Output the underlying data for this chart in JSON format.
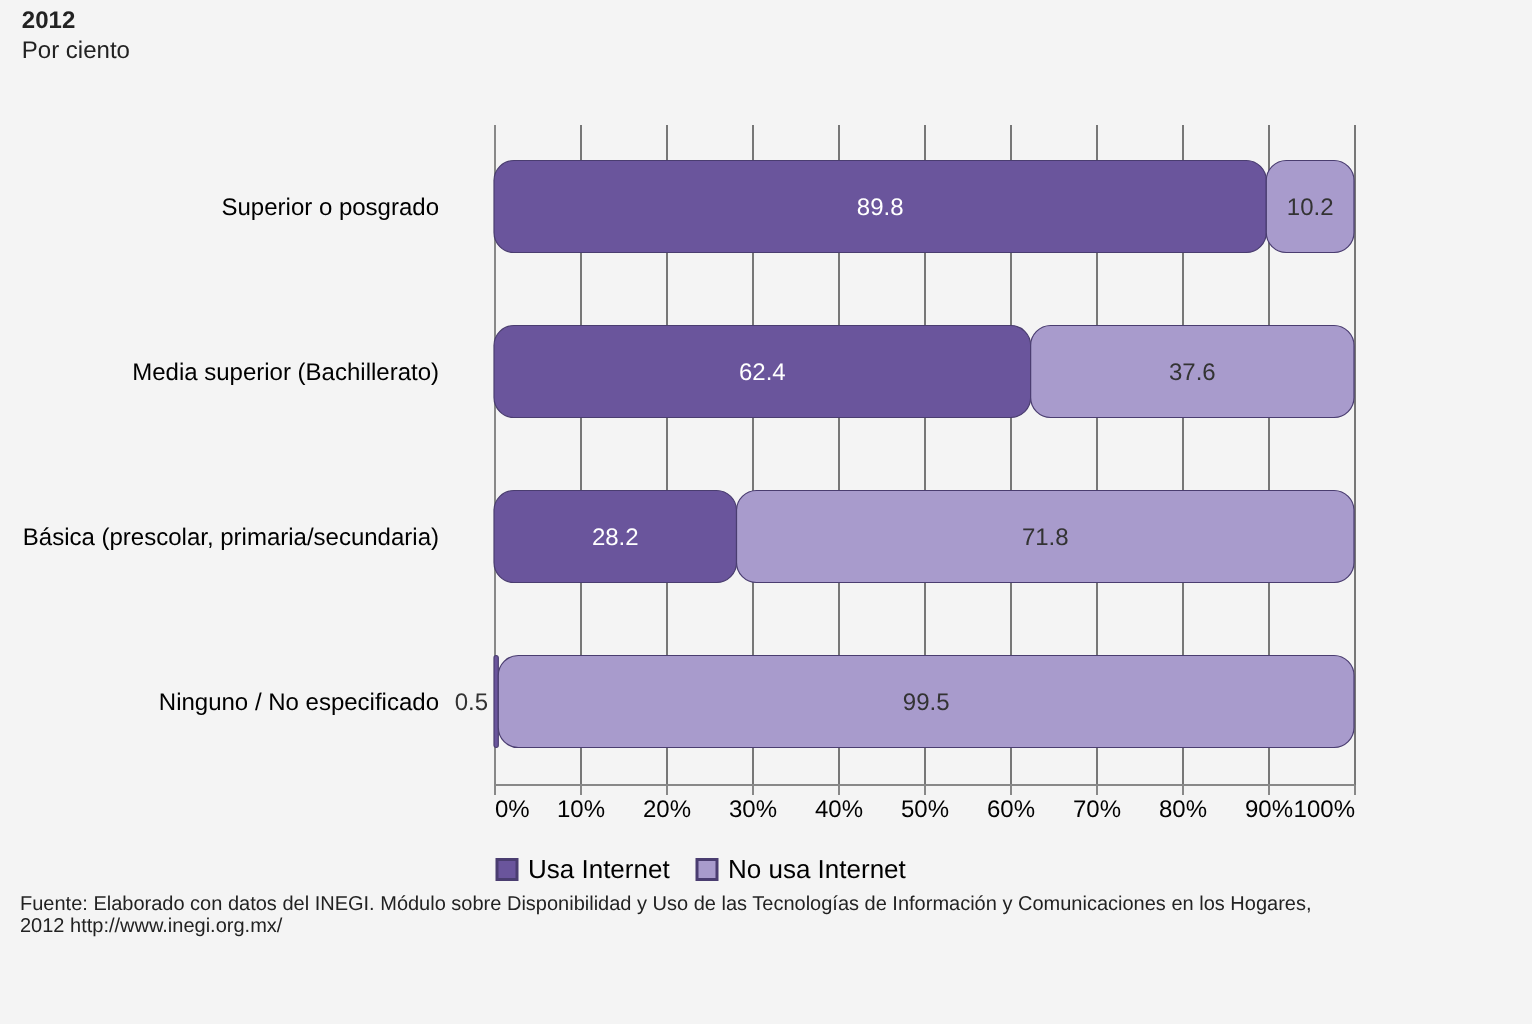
{
  "chart_data": {
    "type": "bar",
    "orientation": "horizontal",
    "stacked": true,
    "title": "2012",
    "subtitle": "Por ciento",
    "categories": [
      "Superior o posgrado",
      "Media superior (Bachillerato)",
      "Básica (prescolar, primaria/secundaria)",
      "Ninguno / No especificado"
    ],
    "series": [
      {
        "name": "Usa Internet",
        "color": "#6a559c",
        "values": [
          89.8,
          62.4,
          28.2,
          0.5
        ]
      },
      {
        "name": "No usa Internet",
        "color": "#a89bcc",
        "values": [
          10.2,
          37.6,
          71.8,
          99.5
        ]
      }
    ],
    "xlim": [
      0,
      100
    ],
    "xticks": [
      {
        "value": 0,
        "label": "0%"
      },
      {
        "value": 10,
        "label": "10%"
      },
      {
        "value": 20,
        "label": "20%"
      },
      {
        "value": 30,
        "label": "30%"
      },
      {
        "value": 40,
        "label": "40%"
      },
      {
        "value": 50,
        "label": "50%"
      },
      {
        "value": 60,
        "label": "60%"
      },
      {
        "value": 70,
        "label": "70%"
      },
      {
        "value": 80,
        "label": "80%"
      },
      {
        "value": 90,
        "label": "90%"
      },
      {
        "value": 100,
        "label": "100%"
      }
    ],
    "grid": "x",
    "legend": "bottom",
    "data_labels": true,
    "annotations": [
      "Fuente: Elaborado con datos del INEGI. Módulo sobre Disponibilidad y Uso de las Tecnologías de Información y Comunicaciones en los Hogares, 2012 http://www.inegi.org.mx/"
    ]
  }
}
